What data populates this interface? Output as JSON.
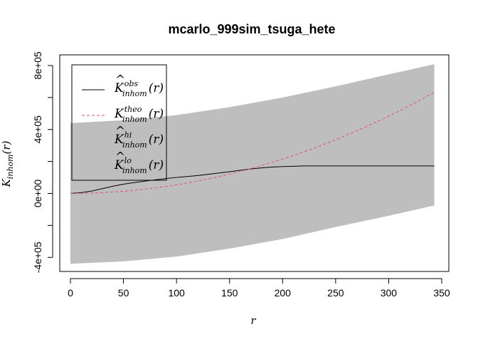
{
  "chart_data": {
    "type": "line",
    "title": "mcarlo_999sim_tsuga_hete",
    "xlabel": "r",
    "ylabel": {
      "main": "K",
      "sub": "inhom",
      "arg": "(r)"
    },
    "xlim": [
      0,
      345
    ],
    "ylim": [
      -450000,
      820000
    ],
    "xticks": [
      0,
      50,
      100,
      150,
      200,
      250,
      300,
      350
    ],
    "xtick_labels": [
      "0",
      "50",
      "100",
      "150",
      "200",
      "250",
      "300",
      "350"
    ],
    "yticks": [
      -400000,
      0,
      400000,
      800000
    ],
    "ytick_labels": [
      "-4e+05",
      "0e+00",
      "4e+05",
      "8e+05"
    ],
    "grid": false,
    "legend_position": "top-left",
    "colors": {
      "obs": "#000000",
      "theo": "#df536b",
      "envelope": "#bebebe"
    },
    "envelope": {
      "x": [
        0,
        50,
        100,
        150,
        200,
        250,
        300,
        343
      ],
      "hi": [
        440000,
        458000,
        490000,
        540000,
        600000,
        670000,
        745000,
        808000
      ],
      "lo": [
        -440000,
        -425000,
        -395000,
        -345000,
        -285000,
        -210000,
        -140000,
        -75000
      ]
    },
    "series": [
      {
        "key": "obs",
        "style": "solid",
        "x": [
          0,
          10,
          20,
          30,
          40,
          50,
          60,
          70,
          80,
          90,
          100,
          110,
          120,
          130,
          140,
          150,
          160,
          170,
          180,
          190,
          200,
          210,
          220,
          230,
          250,
          300,
          343
        ],
        "y": [
          0,
          5000,
          15000,
          30000,
          45000,
          58000,
          68000,
          77000,
          85000,
          93000,
          100000,
          106000,
          112000,
          120000,
          128000,
          136000,
          145000,
          153000,
          160000,
          165000,
          168000,
          170000,
          172000,
          172000,
          172000,
          172000,
          172000
        ]
      },
      {
        "key": "theo",
        "style": "dashed",
        "x": [
          0,
          25,
          50,
          75,
          100,
          125,
          150,
          175,
          200,
          225,
          250,
          275,
          300,
          325,
          343
        ],
        "y": [
          0,
          3400,
          13400,
          30200,
          53700,
          83900,
          120800,
          164500,
          214800,
          271900,
          335700,
          406200,
          483400,
          567300,
          631900
        ]
      }
    ],
    "legend": [
      {
        "key": "obs",
        "main": "K",
        "hat": true,
        "sup": "obs",
        "sub": "inhom",
        "arg": "(r)",
        "line": "solid"
      },
      {
        "key": "theo",
        "main": "K",
        "hat": false,
        "sup": "theo",
        "sub": "inhom",
        "arg": "(r)",
        "line": "dashed"
      },
      {
        "key": "hi",
        "main": "K",
        "hat": true,
        "sup": "hi",
        "sub": "inhom",
        "arg": "(r)",
        "line": "none"
      },
      {
        "key": "lo",
        "main": "K",
        "hat": true,
        "sup": "lo",
        "sub": "inhom",
        "arg": "(r)",
        "line": "none"
      }
    ]
  }
}
